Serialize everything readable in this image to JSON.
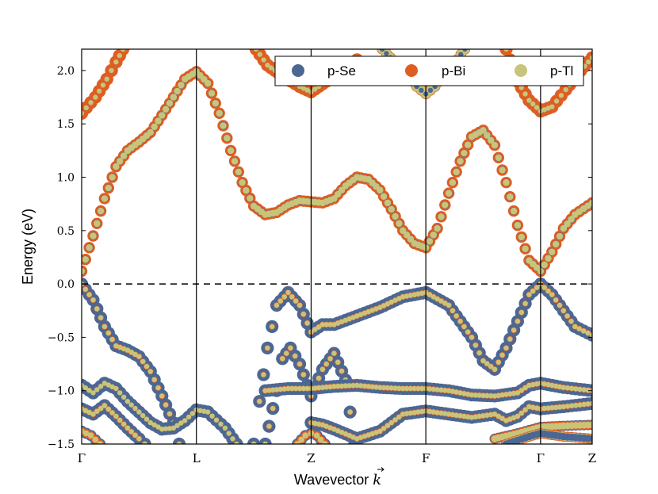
{
  "chart_data": {
    "type": "scatter",
    "title": "",
    "xlabel": "Wavevector",
    "xlabel_symbol": "k",
    "ylabel": "Energy (eV)",
    "ylim": [
      -1.5,
      2.2
    ],
    "yticks": [
      -1.5,
      -1.0,
      -0.5,
      0.0,
      0.5,
      1.0,
      1.5,
      2.0
    ],
    "ytick_labels": [
      "−1.5",
      "−1.0",
      "−0.5",
      "0.0",
      "0.5",
      "1.0",
      "1.5",
      "2.0"
    ],
    "kpoint_labels": [
      "Γ",
      "L",
      "Z",
      "F",
      "Γ",
      "Z"
    ],
    "kpoint_positions": [
      0,
      1,
      2,
      3,
      4,
      4.45
    ],
    "fermi_level": 0.0,
    "grid": false,
    "legend_position": "top-right",
    "series": [
      {
        "name": "p-Se",
        "color": "#4c6794"
      },
      {
        "name": "p-Bi",
        "color": "#e05d21"
      },
      {
        "name": "p-Tl",
        "color": "#c8c47a"
      }
    ],
    "bands": [
      {
        "id": "cb-top-left",
        "points": [
          [
            0.0,
            1.6
          ],
          [
            0.12,
            1.75
          ],
          [
            0.22,
            1.92
          ],
          [
            0.3,
            2.08
          ],
          [
            0.36,
            2.2
          ]
        ],
        "weights": [
          0.05,
          0.9,
          0.05
        ]
      },
      {
        "id": "cb-top-mid",
        "points": [
          [
            1.52,
            2.2
          ],
          [
            1.62,
            2.05
          ],
          [
            1.75,
            1.95
          ],
          [
            1.9,
            1.85
          ],
          [
            2.0,
            1.8
          ],
          [
            2.2,
            1.95
          ],
          [
            2.4,
            2.1
          ]
        ],
        "weights": [
          0.05,
          0.9,
          0.05
        ]
      },
      {
        "id": "cb-top-F",
        "points": [
          [
            2.62,
            2.2
          ],
          [
            2.8,
            2.0
          ],
          [
            2.92,
            1.85
          ],
          [
            3.0,
            1.78
          ],
          [
            3.08,
            1.85
          ],
          [
            3.2,
            2.0
          ],
          [
            3.34,
            2.2
          ]
        ],
        "weights": [
          0.05,
          0.55,
          0.4
        ]
      },
      {
        "id": "cb-top-right",
        "points": [
          [
            3.7,
            2.2
          ],
          [
            3.8,
            1.9
          ],
          [
            3.9,
            1.72
          ],
          [
            4.0,
            1.62
          ],
          [
            4.1,
            1.66
          ],
          [
            4.22,
            1.82
          ],
          [
            4.35,
            2.0
          ],
          [
            4.45,
            2.12
          ]
        ],
        "weights": [
          0.05,
          0.9,
          0.05
        ]
      },
      {
        "id": "conduction-band",
        "points": [
          [
            0.0,
            0.12
          ],
          [
            0.1,
            0.45
          ],
          [
            0.2,
            0.8
          ],
          [
            0.3,
            1.1
          ],
          [
            0.4,
            1.25
          ],
          [
            0.5,
            1.33
          ],
          [
            0.6,
            1.42
          ],
          [
            0.7,
            1.58
          ],
          [
            0.8,
            1.75
          ],
          [
            0.9,
            1.92
          ],
          [
            1.0,
            1.99
          ],
          [
            1.1,
            1.88
          ],
          [
            1.2,
            1.6
          ],
          [
            1.3,
            1.25
          ],
          [
            1.4,
            0.95
          ],
          [
            1.5,
            0.73
          ],
          [
            1.6,
            0.65
          ],
          [
            1.7,
            0.67
          ],
          [
            1.8,
            0.74
          ],
          [
            1.9,
            0.78
          ],
          [
            2.0,
            0.77
          ],
          [
            2.1,
            0.76
          ],
          [
            2.2,
            0.8
          ],
          [
            2.3,
            0.92
          ],
          [
            2.4,
            1.0
          ],
          [
            2.5,
            0.98
          ],
          [
            2.6,
            0.88
          ],
          [
            2.7,
            0.7
          ],
          [
            2.8,
            0.5
          ],
          [
            2.9,
            0.38
          ],
          [
            3.0,
            0.34
          ],
          [
            3.1,
            0.52
          ],
          [
            3.2,
            0.85
          ],
          [
            3.3,
            1.15
          ],
          [
            3.4,
            1.38
          ],
          [
            3.5,
            1.44
          ],
          [
            3.6,
            1.3
          ],
          [
            3.7,
            0.95
          ],
          [
            3.8,
            0.55
          ],
          [
            3.9,
            0.22
          ],
          [
            4.0,
            0.12
          ],
          [
            4.1,
            0.3
          ],
          [
            4.2,
            0.52
          ],
          [
            4.3,
            0.65
          ],
          [
            4.45,
            0.76
          ]
        ],
        "weights": [
          0.2,
          0.65,
          0.15
        ]
      },
      {
        "id": "valence-band-1",
        "points": [
          [
            0.0,
            0.0
          ],
          [
            0.1,
            -0.15
          ],
          [
            0.2,
            -0.4
          ],
          [
            0.3,
            -0.58
          ],
          [
            0.4,
            -0.62
          ],
          [
            0.5,
            -0.68
          ],
          [
            0.6,
            -0.82
          ],
          [
            0.7,
            -1.05
          ],
          [
            0.8,
            -1.3
          ],
          [
            0.85,
            -1.5
          ]
        ],
        "weights": [
          0.85,
          0.1,
          0.05
        ]
      },
      {
        "id": "valence-band-2",
        "points": [
          [
            1.5,
            -1.5
          ],
          [
            1.55,
            -1.1
          ],
          [
            1.62,
            -0.6
          ],
          [
            1.7,
            -0.2
          ],
          [
            1.8,
            -0.08
          ],
          [
            1.9,
            -0.2
          ],
          [
            2.0,
            -0.45
          ],
          [
            2.1,
            -0.38
          ],
          [
            2.2,
            -0.38
          ],
          [
            2.4,
            -0.3
          ],
          [
            2.6,
            -0.22
          ],
          [
            2.8,
            -0.12
          ],
          [
            3.0,
            -0.08
          ],
          [
            3.2,
            -0.2
          ],
          [
            3.4,
            -0.5
          ],
          [
            3.5,
            -0.72
          ],
          [
            3.6,
            -0.8
          ],
          [
            3.7,
            -0.6
          ],
          [
            3.8,
            -0.35
          ],
          [
            3.9,
            -0.1
          ],
          [
            4.0,
            0.0
          ],
          [
            4.1,
            -0.1
          ],
          [
            4.2,
            -0.25
          ],
          [
            4.3,
            -0.4
          ],
          [
            4.45,
            -0.48
          ]
        ],
        "weights": [
          0.85,
          0.1,
          0.05
        ]
      },
      {
        "id": "valence-band-3",
        "points": [
          [
            1.6,
            -1.5
          ],
          [
            1.7,
            -1.0
          ],
          [
            1.75,
            -0.7
          ],
          [
            1.82,
            -0.6
          ],
          [
            1.9,
            -0.75
          ],
          [
            2.0,
            -1.05
          ],
          [
            2.1,
            -0.8
          ],
          [
            2.2,
            -0.65
          ],
          [
            2.3,
            -0.9
          ],
          [
            2.38,
            -1.5
          ]
        ],
        "weights": [
          0.85,
          0.1,
          0.05
        ]
      },
      {
        "id": "valence-band-4",
        "points": [
          [
            0.0,
            -0.95
          ],
          [
            0.1,
            -1.02
          ],
          [
            0.2,
            -0.93
          ],
          [
            0.3,
            -0.98
          ],
          [
            0.4,
            -1.1
          ],
          [
            0.5,
            -1.2
          ],
          [
            0.6,
            -1.3
          ],
          [
            0.7,
            -1.36
          ],
          [
            0.8,
            -1.35
          ],
          [
            0.9,
            -1.28
          ],
          [
            1.0,
            -1.18
          ],
          [
            1.1,
            -1.2
          ],
          [
            1.25,
            -1.35
          ],
          [
            1.35,
            -1.5
          ]
        ],
        "weights": [
          0.9,
          0.05,
          0.05
        ]
      },
      {
        "id": "valence-band-5",
        "points": [
          [
            1.6,
            -1.0
          ],
          [
            1.8,
            -0.98
          ],
          [
            2.0,
            -0.98
          ],
          [
            2.2,
            -0.96
          ],
          [
            2.4,
            -0.95
          ],
          [
            2.6,
            -0.97
          ],
          [
            2.8,
            -0.98
          ],
          [
            3.0,
            -0.98
          ],
          [
            3.2,
            -1.0
          ],
          [
            3.4,
            -1.04
          ],
          [
            3.6,
            -1.05
          ],
          [
            3.8,
            -1.02
          ],
          [
            3.9,
            -0.95
          ],
          [
            4.0,
            -0.93
          ],
          [
            4.2,
            -0.97
          ],
          [
            4.45,
            -1.0
          ]
        ],
        "weights": [
          0.85,
          0.1,
          0.05
        ]
      },
      {
        "id": "valence-band-6",
        "points": [
          [
            0.0,
            -1.17
          ],
          [
            0.1,
            -1.22
          ],
          [
            0.2,
            -1.14
          ],
          [
            0.3,
            -1.24
          ],
          [
            0.4,
            -1.35
          ],
          [
            0.5,
            -1.45
          ],
          [
            0.55,
            -1.5
          ]
        ],
        "weights": [
          0.85,
          0.1,
          0.05
        ]
      },
      {
        "id": "valence-band-7",
        "points": [
          [
            2.0,
            -1.3
          ],
          [
            2.1,
            -1.32
          ],
          [
            2.2,
            -1.36
          ],
          [
            2.4,
            -1.45
          ],
          [
            2.6,
            -1.38
          ],
          [
            2.8,
            -1.22
          ],
          [
            3.0,
            -1.19
          ],
          [
            3.2,
            -1.22
          ],
          [
            3.4,
            -1.25
          ],
          [
            3.6,
            -1.22
          ],
          [
            3.7,
            -1.28
          ],
          [
            3.8,
            -1.24
          ],
          [
            3.9,
            -1.15
          ],
          [
            4.0,
            -1.17
          ],
          [
            4.2,
            -1.15
          ],
          [
            4.45,
            -1.12
          ]
        ],
        "weights": [
          0.85,
          0.1,
          0.05
        ]
      },
      {
        "id": "valence-band-8",
        "points": [
          [
            3.6,
            -1.45
          ],
          [
            3.8,
            -1.4
          ],
          [
            4.0,
            -1.34
          ],
          [
            4.2,
            -1.33
          ],
          [
            4.45,
            -1.32
          ]
        ],
        "weights": [
          0.5,
          0.35,
          0.15
        ]
      },
      {
        "id": "valence-band-9",
        "points": [
          [
            3.7,
            -1.5
          ],
          [
            3.9,
            -1.43
          ],
          [
            4.0,
            -1.4
          ],
          [
            4.2,
            -1.43
          ],
          [
            4.45,
            -1.45
          ]
        ],
        "weights": [
          0.2,
          0.5,
          0.3
        ]
      },
      {
        "id": "valence-band-10",
        "points": [
          [
            0.0,
            -1.38
          ],
          [
            0.08,
            -1.42
          ],
          [
            0.16,
            -1.5
          ]
        ],
        "weights": [
          0.6,
          0.3,
          0.1
        ]
      },
      {
        "id": "valence-band-11",
        "points": [
          [
            1.88,
            -1.5
          ],
          [
            1.95,
            -1.42
          ],
          [
            2.0,
            -1.4
          ],
          [
            2.05,
            -1.42
          ],
          [
            2.12,
            -1.5
          ]
        ],
        "weights": [
          0.6,
          0.3,
          0.1
        ]
      }
    ]
  }
}
